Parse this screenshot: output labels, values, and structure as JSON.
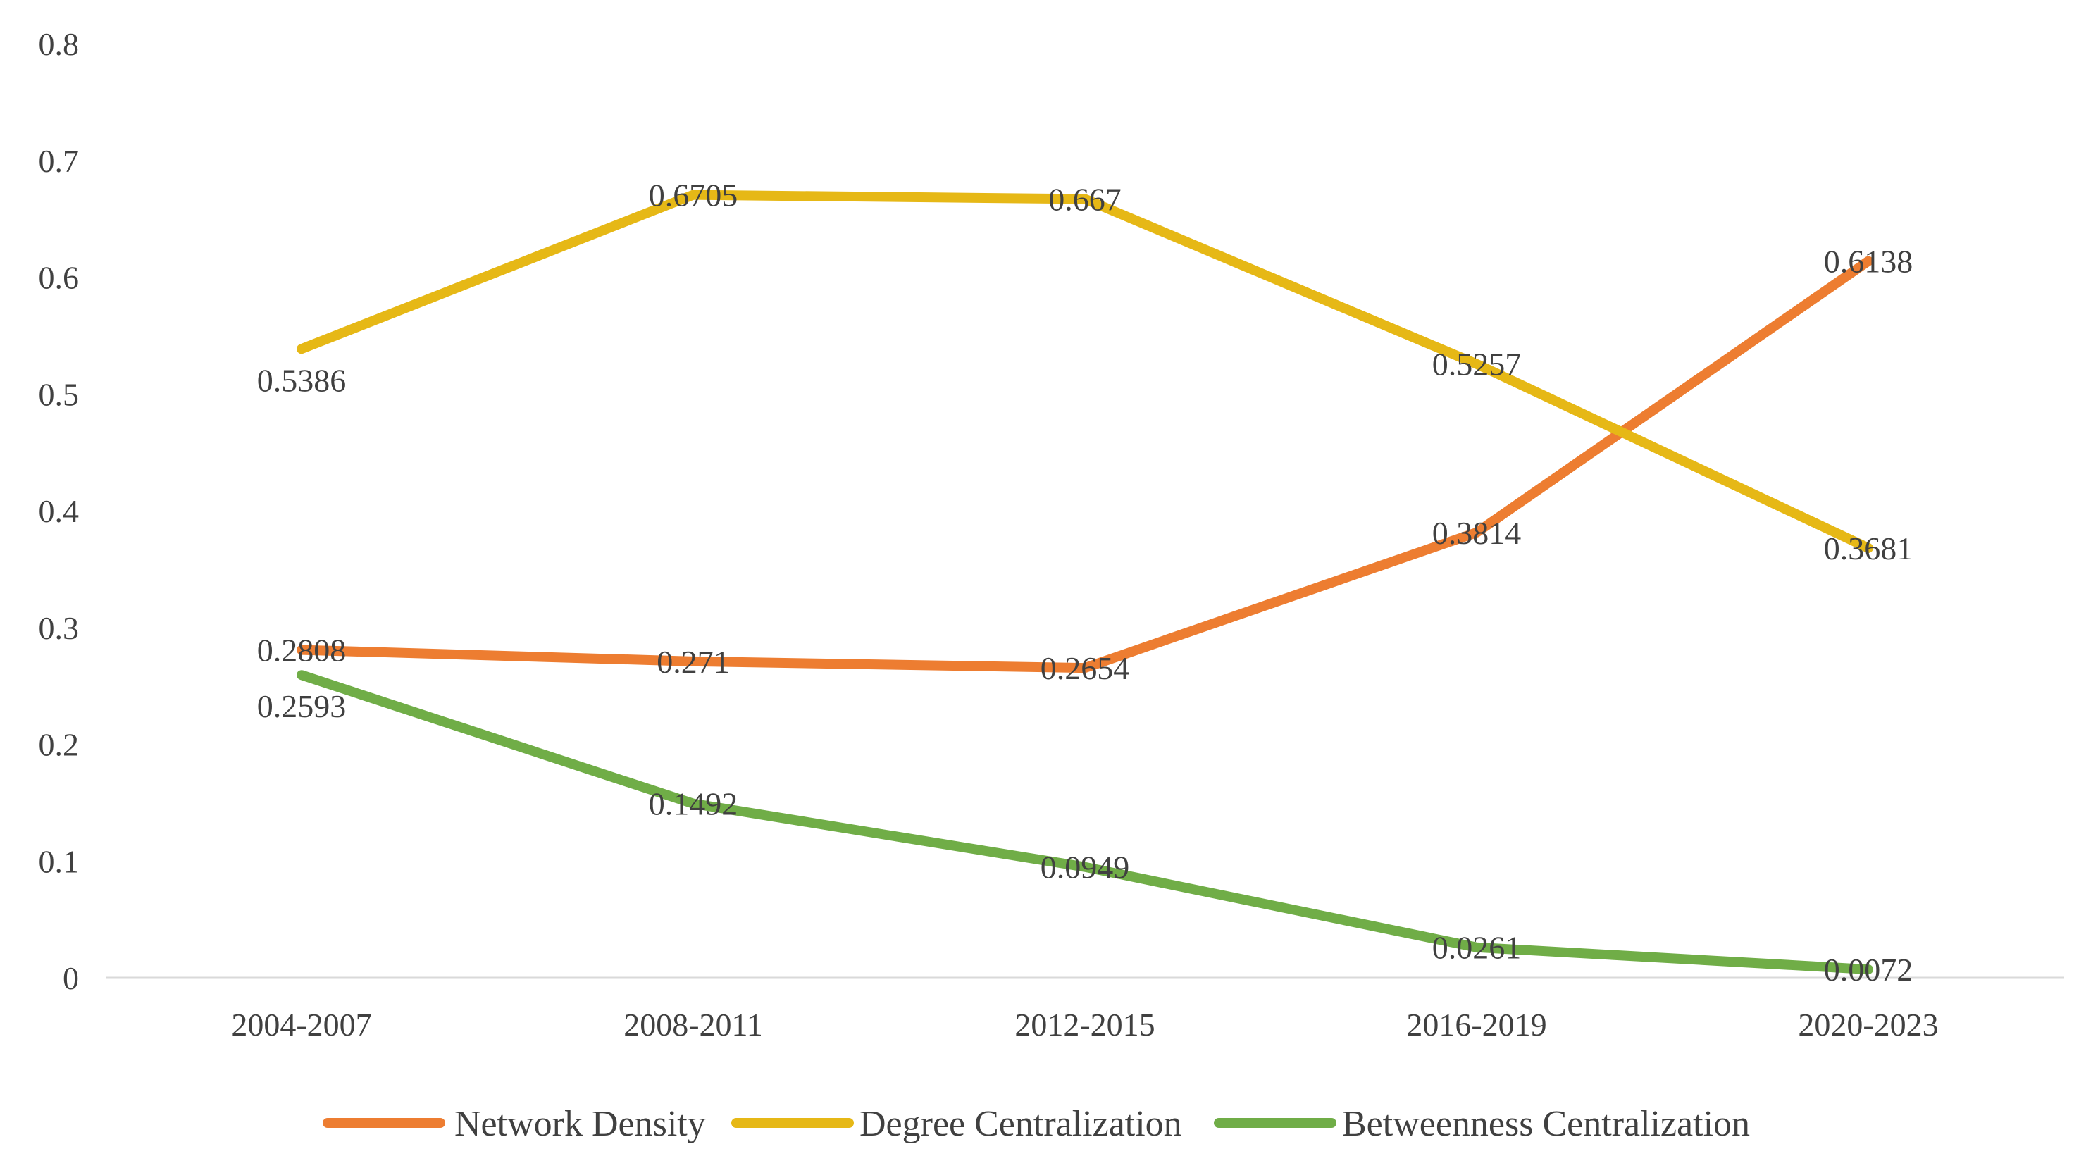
{
  "chart_data": {
    "type": "line",
    "title": "",
    "xlabel": "",
    "ylabel": "",
    "categories": [
      "2004-2007",
      "2008-2011",
      "2012-2015",
      "2016-2019",
      "2020-2023"
    ],
    "ylim": [
      0,
      0.8
    ],
    "yticks": [
      "0",
      "0.1",
      "0.2",
      "0.3",
      "0.4",
      "0.5",
      "0.6",
      "0.7",
      "0.8"
    ],
    "grid": false,
    "legend_position": "bottom",
    "series": [
      {
        "name": "Network Density",
        "color": "#ED7D31",
        "values": [
          0.2808,
          0.271,
          0.2654,
          0.3814,
          0.6138
        ],
        "labels": [
          "0.2808",
          "0.271",
          "0.2654",
          "0.3814",
          "0.6138"
        ]
      },
      {
        "name": "Degree Centralization",
        "color": "#E6B816",
        "values": [
          0.5386,
          0.6705,
          0.667,
          0.5257,
          0.3681
        ],
        "labels": [
          "0.5386",
          "0.6705",
          "0.667",
          "0.5257",
          "0.3681"
        ]
      },
      {
        "name": "Betweenness Centralization",
        "color": "#70AD47",
        "values": [
          0.2593,
          0.1492,
          0.0949,
          0.0261,
          0.0072
        ],
        "labels": [
          "0.2593",
          "0.1492",
          "0.0949",
          "0.0261",
          "0.0072"
        ]
      }
    ]
  }
}
